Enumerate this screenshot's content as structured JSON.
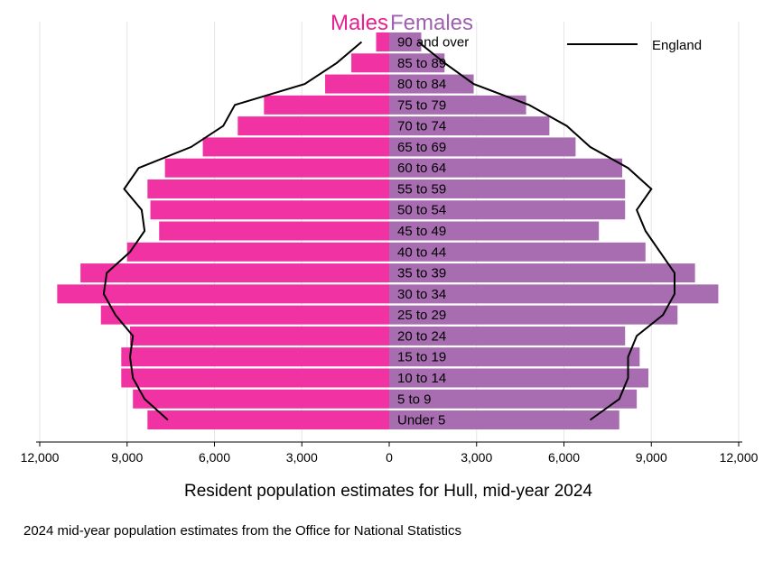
{
  "chart_data": {
    "type": "bar",
    "subtype": "population-pyramid",
    "title_left": "Males",
    "title_right": "Females",
    "xlabel": "Resident population estimates for Hull, mid-year 2024",
    "source": "2024 mid-year population estimates from the Office for National Statistics",
    "xlim": [
      -12000,
      12000
    ],
    "ticks": [
      -12000,
      -9000,
      -6000,
      -3000,
      0,
      3000,
      6000,
      9000,
      12000
    ],
    "tick_labels": [
      "12,000",
      "9,000",
      "6,000",
      "3,000",
      "0",
      "3,000",
      "6,000",
      "9,000",
      "12,000"
    ],
    "categories": [
      "90 and over",
      "85 to 89",
      "80 to 84",
      "75 to 79",
      "70 to 74",
      "65 to 69",
      "60 to 64",
      "55 to 59",
      "50 to 54",
      "45 to 49",
      "40 to 44",
      "35 to 39",
      "30 to 34",
      "25 to 29",
      "20 to 24",
      "15 to 19",
      "10 to 14",
      "5 to 9",
      "Under 5"
    ],
    "series": [
      {
        "name": "Males",
        "color": "#f032a3",
        "values": [
          450,
          1300,
          2200,
          4300,
          5200,
          6400,
          7700,
          8300,
          8200,
          7900,
          9000,
          10600,
          11400,
          9900,
          8900,
          9200,
          9200,
          8800,
          8300
        ]
      },
      {
        "name": "Females",
        "color": "#a86db1",
        "values": [
          1100,
          1900,
          2900,
          4700,
          5500,
          6400,
          8000,
          8100,
          8100,
          7200,
          8800,
          10500,
          11300,
          9900,
          8100,
          8600,
          8900,
          8500,
          7900
        ]
      }
    ],
    "overlay": {
      "name": "England",
      "type": "line",
      "color": "#000000",
      "males": [
        950,
        1800,
        2900,
        5300,
        5700,
        6800,
        8600,
        9100,
        8500,
        8400,
        8900,
        9700,
        9800,
        9400,
        8800,
        8900,
        8800,
        8400,
        7600
      ],
      "females": [
        1000,
        1900,
        2900,
        4800,
        6100,
        6900,
        8200,
        9000,
        8500,
        8800,
        9300,
        9800,
        9800,
        9400,
        8500,
        8200,
        8200,
        7900,
        6900
      ]
    },
    "legend": {
      "entries": [
        "England"
      ],
      "position": "top-right"
    },
    "colors": {
      "males_title": "#e8208f",
      "females_title": "#a060b0",
      "grid": "#e6e6e6",
      "background": "#ffffff"
    }
  }
}
